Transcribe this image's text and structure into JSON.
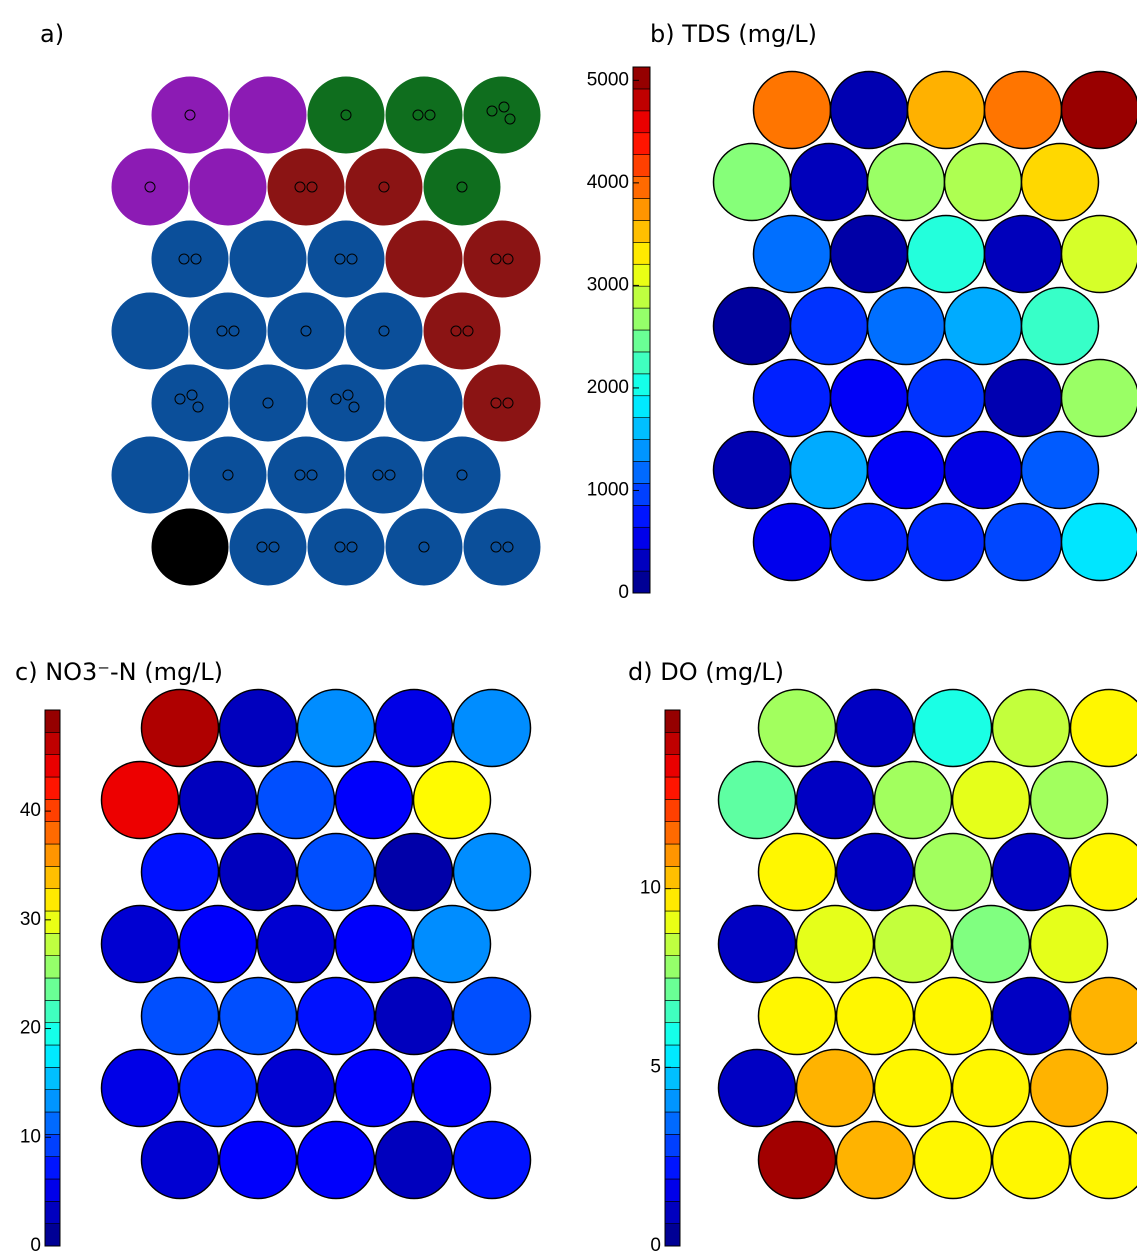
{
  "chart_data": [
    {
      "type": "som-clusters",
      "title": "a)",
      "cluster_colors": [
        "#8c1bb4",
        "#0f6e1e",
        "#8b1414",
        "#0b4f9a",
        "#000000"
      ],
      "clusters": [
        [
          0,
          0,
          1,
          1,
          1
        ],
        [
          0,
          0,
          2,
          2,
          1
        ],
        [
          3,
          3,
          3,
          2,
          2
        ],
        [
          3,
          3,
          3,
          3,
          2
        ],
        [
          3,
          3,
          3,
          3,
          2
        ],
        [
          3,
          3,
          3,
          3,
          3
        ],
        [
          4,
          3,
          3,
          3,
          3
        ]
      ],
      "samples": [
        [
          1,
          0,
          1,
          2,
          3
        ],
        [
          1,
          0,
          2,
          1,
          1
        ],
        [
          2,
          0,
          2,
          0,
          2
        ],
        [
          0,
          2,
          1,
          1,
          2
        ],
        [
          3,
          1,
          3,
          0,
          2
        ],
        [
          0,
          1,
          2,
          2,
          1
        ],
        [
          0,
          2,
          2,
          1,
          2
        ]
      ]
    },
    {
      "type": "som-heatmap",
      "title": "b) TDS (mg/L)",
      "ylim": [
        0,
        5130
      ],
      "yticks": [
        0,
        1000,
        2000,
        3000,
        4000,
        5000
      ],
      "values": [
        [
          3900,
          250,
          3600,
          3900,
          5000
        ],
        [
          2600,
          300,
          2700,
          2800,
          3400
        ],
        [
          1200,
          200,
          2100,
          300,
          3000
        ],
        [
          150,
          900,
          1200,
          1500,
          2200
        ],
        [
          800,
          600,
          900,
          250,
          2700
        ],
        [
          250,
          1500,
          600,
          500,
          1100
        ],
        [
          550,
          800,
          850,
          1000,
          1800
        ]
      ]
    },
    {
      "type": "som-heatmap",
      "title": "c) NO3⁻-N (mg/L)",
      "ylim": [
        0,
        49.3
      ],
      "yticks": [
        0,
        10,
        20,
        30,
        40
      ],
      "values": [
        [
          47,
          3,
          13,
          5,
          13
        ],
        [
          44,
          3,
          10,
          6,
          31
        ],
        [
          7,
          3,
          10,
          2,
          13
        ],
        [
          4,
          6,
          4,
          6,
          13
        ],
        [
          10,
          10,
          7,
          3,
          10
        ],
        [
          5,
          8,
          4,
          6,
          6
        ],
        [
          4,
          6,
          6,
          3,
          7
        ]
      ]
    },
    {
      "type": "som-heatmap",
      "title": "d) DO (mg/L)",
      "ylim": [
        0,
        15
      ],
      "yticks": [
        0,
        5,
        10
      ],
      "values": [
        [
          8,
          1,
          6,
          8.5,
          9.5
        ],
        [
          7,
          1,
          8,
          9,
          8
        ],
        [
          9.5,
          1,
          8,
          1,
          9.5
        ],
        [
          1,
          9,
          8.5,
          7.5,
          9
        ],
        [
          9.5,
          9.5,
          9.5,
          1,
          10.5
        ],
        [
          1,
          10.5,
          9.5,
          9.5,
          10.5
        ],
        [
          14.5,
          10.5,
          9.5,
          9.5,
          9.5
        ]
      ]
    }
  ]
}
